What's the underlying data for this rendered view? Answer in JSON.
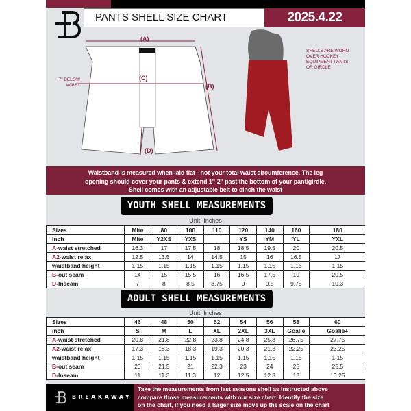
{
  "header": {
    "title": "PANTS SHELL SIZE CHART",
    "date": "2025.4.22"
  },
  "colors": {
    "accent": "#86213d",
    "dark": "#000000",
    "background": "#e3e4e8"
  },
  "diagram": {
    "label_a": "(A)",
    "label_b": "(B)",
    "label_c": "(C)",
    "label_d": "(D)",
    "c_note_1": "7\" BELOW",
    "c_note_2": "WAIST",
    "photo_note": [
      "SHELLS ARE WORN",
      "OVER HOCKEY",
      "EQUIPMENT PANTS",
      "OR GIRDLE"
    ]
  },
  "band_text": [
    "Waistband is measured when laid flat - not your total waist circumference. The leg",
    "opening should cover your pants & extend 1''-2'' past the bottom of your pant/girdle.",
    "Shell comes with an adjustable belt to cinch the waist"
  ],
  "youth": {
    "title": "YOUTH SHELL MEASUREMENTS",
    "unit": "Unit: Inches",
    "rows": [
      {
        "p": "",
        "l": "Sizes",
        "v": [
          "Mite",
          "80",
          "100",
          "110",
          "120",
          "140",
          "160",
          "180"
        ]
      },
      {
        "p": "",
        "l": "inch",
        "v": [
          "Mite",
          "Y2XS",
          "YXS",
          "",
          "YS",
          "YM",
          "YL",
          "YXL"
        ]
      },
      {
        "p": "A",
        "l": "-waist stretched",
        "v": [
          "16.3",
          "17",
          "17.5",
          "18",
          "18.5",
          "19.5",
          "20",
          "20.5"
        ]
      },
      {
        "p": "A2",
        "l": "-waist relax",
        "v": [
          "12.5",
          "13.5",
          "14",
          "14.5",
          "15",
          "16",
          "16.5",
          "17"
        ]
      },
      {
        "p": "",
        "l": "waistband height",
        "v": [
          "1.15",
          "1.15",
          "1.15",
          "1.15",
          "1.15",
          "1.15",
          "1.15",
          "1.15"
        ]
      },
      {
        "p": "B",
        "l": "-out seam",
        "v": [
          "14",
          "15",
          "15.5",
          "16",
          "16.5",
          "17.5",
          "19",
          "20.5"
        ]
      },
      {
        "p": "D",
        "l": "-Inseam",
        "v": [
          "7",
          "8",
          "8.5",
          "8.75",
          "9",
          "9.5",
          "9.75",
          "10.3"
        ]
      }
    ]
  },
  "adult": {
    "title": "ADULT SHELL MEASUREMENTS",
    "unit": "Unit: Inches",
    "rows": [
      {
        "p": "",
        "l": "Sizes",
        "v": [
          "46",
          "48",
          "50",
          "52",
          "54",
          "56",
          "58",
          "60"
        ]
      },
      {
        "p": "",
        "l": "inch",
        "v": [
          "S",
          "M",
          "L",
          "XL",
          "2XL",
          "3XL",
          "Goalie",
          "Goalie+"
        ]
      },
      {
        "p": "A",
        "l": "-waist stretched",
        "v": [
          "20.8",
          "21.8",
          "22.8",
          "23.8",
          "24.8",
          "25.8",
          "26.75",
          "27.75"
        ]
      },
      {
        "p": "A2",
        "l": "-waist relax",
        "v": [
          "17.3",
          "18.3",
          "18.3",
          "19.3",
          "20.3",
          "21.3",
          "22.25",
          "23.25"
        ]
      },
      {
        "p": "",
        "l": "waistband height",
        "v": [
          "1.15",
          "1.15",
          "1.15",
          "1.15",
          "1.15",
          "1.15",
          "1.15",
          "1.15"
        ]
      },
      {
        "p": "B",
        "l": "-out seam",
        "v": [
          "20",
          "21.5",
          "21",
          "22.3",
          "23",
          "24",
          "25",
          "25.5"
        ]
      },
      {
        "p": "D",
        "l": "-Inseam",
        "v": [
          "11",
          "11.3",
          "11.3",
          "12",
          "12.5",
          "12.8",
          "13",
          "13.25"
        ]
      }
    ]
  },
  "footer": {
    "brand": "BREAKAWAY",
    "text": [
      "Take the measurements from last seasons shell as instructed above",
      "compare those measurements  with our size chart. Identify the size",
      "on the chart, if you need a larger size move up the scale on the chart"
    ]
  }
}
